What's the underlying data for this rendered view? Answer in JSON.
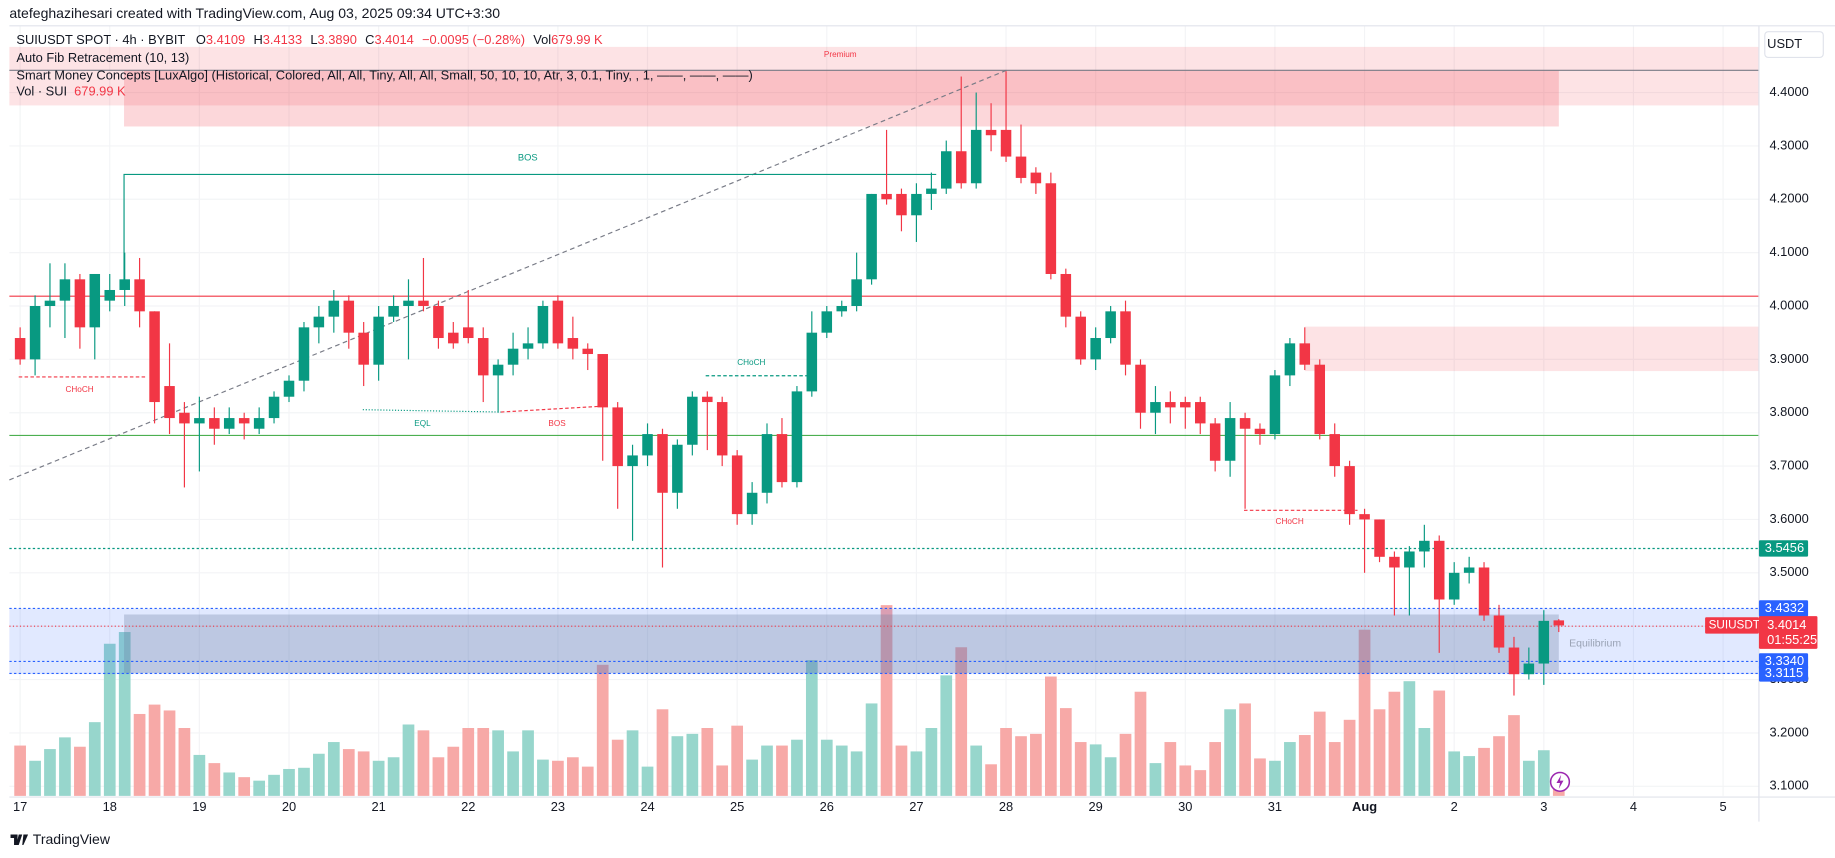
{
  "chart_data": {
    "type": "candlestick",
    "header": {
      "credit": "atefeghazihesari created with TradingView.com, Aug 03, 2025 09:34 UTC+3:30",
      "symbol": "SUIUSDT SPOT · 4h · BYBIT",
      "ohlc": [
        {
          "key": "O",
          "value": "3.4109"
        },
        {
          "key": "H",
          "value": "3.4133"
        },
        {
          "key": "L",
          "value": "3.3890"
        },
        {
          "key": "C",
          "value": "3.4014"
        }
      ],
      "change": "−0.0095 (−0.28%)",
      "vol_key": "Vol",
      "vol_value": "679.99 K",
      "indicators": [
        "Auto Fib Retracement (10, 13)",
        "Smart Money Concepts [LuxAlgo] (Historical, Colored, All, All, Tiny, All, All, Small, 50, 10, 10, Atr, 3, 0.1, Tiny, , 1, ——, ——, ——)"
      ],
      "vol_name": "Vol · SUI",
      "vol_text": "679.99 K"
    },
    "currency": "USDT",
    "brand": "TradingView",
    "annotations": {
      "premium": "Premium",
      "equilibrium": "Equilibrium",
      "bos": [
        "BOS",
        "BOS"
      ],
      "choch": [
        "CHoCH",
        "CHoCH",
        "CHoCH"
      ],
      "eql": "EQL"
    },
    "symbol_tag": {
      "name": "SUIUSDT",
      "countdown": "01:55:25"
    },
    "up_color": "#089981",
    "down_color": "#f23645",
    "volume_up_color": "#97d6cc",
    "volume_down_color": "#f7a9a7",
    "grid": true,
    "xlim": [
      16.88,
      36.4
    ],
    "xticks": [
      17,
      18,
      19,
      20,
      21,
      22,
      23,
      24,
      25,
      26,
      27,
      28,
      29,
      30,
      31,
      {
        "value": 32,
        "label": "Aug"
      },
      {
        "value": 33,
        "label": "2"
      },
      {
        "value": 34,
        "label": "3"
      },
      {
        "value": 35,
        "label": "4"
      },
      {
        "value": 36,
        "label": "5"
      }
    ],
    "ylim": [
      3.082,
      4.525
    ],
    "yticks": [
      {
        "value": 3.1,
        "label": "3.1000"
      },
      {
        "value": 3.2,
        "label": "3.2000"
      },
      {
        "value": 3.3,
        "label": "3.3000"
      },
      {
        "value": 3.4,
        "label": "3.4000"
      },
      {
        "value": 3.5,
        "label": "3.5000"
      },
      {
        "value": 3.6,
        "label": "3.6000"
      },
      {
        "value": 3.7,
        "label": "3.7000"
      },
      {
        "value": 3.8,
        "label": "3.8000"
      },
      {
        "value": 3.9,
        "label": "3.9000"
      },
      {
        "value": 4.0,
        "label": "4.0000"
      },
      {
        "value": 4.1,
        "label": "4.1000"
      },
      {
        "value": 4.2,
        "label": "4.2000"
      },
      {
        "value": 4.3,
        "label": "4.3000"
      },
      {
        "value": 4.4,
        "label": "4.4000"
      }
    ],
    "vol_ylim": [
      0,
      32900
    ],
    "price_lines": [
      {
        "value": 3.5456,
        "label": "3.5456",
        "color": "#089981"
      },
      {
        "value": 3.4332,
        "label": "3.4332",
        "color": "#2962ff"
      },
      {
        "value": 3.334,
        "label": "3.3340",
        "color": "#2962ff"
      },
      {
        "value": 3.3115,
        "label": "3.3115",
        "color": "#2962ff"
      }
    ],
    "x": [
      17,
      17.167,
      17.333,
      17.5,
      17.667,
      17.833,
      18,
      18.167,
      18.333,
      18.5,
      18.667,
      18.833,
      19,
      19.167,
      19.333,
      19.5,
      19.667,
      19.833,
      20,
      20.167,
      20.333,
      20.5,
      20.667,
      20.833,
      21,
      21.167,
      21.333,
      21.5,
      21.667,
      21.833,
      22,
      22.167,
      22.333,
      22.5,
      22.667,
      22.833,
      23,
      23.167,
      23.333,
      23.5,
      23.667,
      23.833,
      24,
      24.167,
      24.333,
      24.5,
      24.667,
      24.833,
      25,
      25.167,
      25.333,
      25.5,
      25.667,
      25.833,
      26,
      26.167,
      26.333,
      26.5,
      26.667,
      26.833,
      27,
      27.167,
      27.333,
      27.5,
      27.667,
      27.833,
      28,
      28.167,
      28.333,
      28.5,
      28.667,
      28.833,
      29,
      29.167,
      29.333,
      29.5,
      29.667,
      29.833,
      30,
      30.167,
      30.333,
      30.5,
      30.667,
      30.833,
      31,
      31.167,
      31.333,
      31.5,
      31.667,
      31.833,
      32,
      32.167,
      32.333,
      32.5,
      32.667,
      32.833,
      33,
      33.167,
      33.333,
      33.5,
      33.667,
      33.833,
      34,
      34.167
    ],
    "open": [
      3.94,
      3.9,
      4.0,
      4.01,
      4.05,
      3.96,
      4.01,
      4.03,
      4.05,
      3.99,
      3.85,
      3.8,
      3.78,
      3.79,
      3.77,
      3.79,
      3.77,
      3.79,
      3.83,
      3.86,
      3.96,
      3.98,
      4.01,
      3.95,
      3.89,
      3.98,
      4.0,
      4.01,
      4.0,
      3.95,
      3.96,
      3.94,
      3.87,
      3.89,
      3.92,
      3.93,
      4.01,
      3.94,
      3.92,
      3.91,
      3.81,
      3.7,
      3.72,
      3.76,
      3.65,
      3.74,
      3.83,
      3.82,
      3.72,
      3.61,
      3.65,
      3.76,
      3.67,
      3.84,
      3.95,
      3.99,
      4.0,
      4.05,
      4.21,
      4.21,
      4.17,
      4.21,
      4.22,
      4.29,
      4.23,
      4.33,
      4.33,
      4.28,
      4.25,
      4.23,
      4.06,
      3.98,
      3.9,
      3.94,
      3.99,
      3.89,
      3.8,
      3.82,
      3.82,
      3.82,
      3.78,
      3.71,
      3.79,
      3.77,
      3.76,
      3.87,
      3.93,
      3.89,
      3.76,
      3.7,
      3.61,
      3.6,
      3.53,
      3.51,
      3.54,
      3.56,
      3.45,
      3.5,
      3.51,
      3.42,
      3.36,
      3.31,
      3.33,
      3.4109
    ],
    "high": [
      3.96,
      4.02,
      4.08,
      4.08,
      4.06,
      4.06,
      4.06,
      4.1,
      4.09,
      3.99,
      3.93,
      3.82,
      3.83,
      3.81,
      3.81,
      3.8,
      3.81,
      3.84,
      3.87,
      3.97,
      4.0,
      4.03,
      4.02,
      3.97,
      4.0,
      4.02,
      4.05,
      4.09,
      4.01,
      3.97,
      4.03,
      3.96,
      3.9,
      3.95,
      3.96,
      4.01,
      4.02,
      3.98,
      3.93,
      3.91,
      3.82,
      3.74,
      3.78,
      3.77,
      3.75,
      3.84,
      3.84,
      3.83,
      3.73,
      3.67,
      3.78,
      3.79,
      3.85,
      3.99,
      4.0,
      4.01,
      4.1,
      4.21,
      4.33,
      4.22,
      4.23,
      4.25,
      4.31,
      4.43,
      4.4,
      4.38,
      4.44,
      4.34,
      4.26,
      4.25,
      4.07,
      3.99,
      3.96,
      4.0,
      4.01,
      3.9,
      3.85,
      3.84,
      3.83,
      3.83,
      3.79,
      3.82,
      3.8,
      3.78,
      3.88,
      3.94,
      3.96,
      3.9,
      3.78,
      3.71,
      3.62,
      3.6,
      3.54,
      3.55,
      3.59,
      3.57,
      3.52,
      3.53,
      3.52,
      3.44,
      3.38,
      3.36,
      3.43,
      3.4133
    ],
    "low": [
      3.89,
      3.87,
      3.96,
      3.94,
      3.92,
      3.9,
      3.99,
      4.0,
      3.96,
      3.78,
      3.76,
      3.66,
      3.69,
      3.74,
      3.76,
      3.75,
      3.76,
      3.78,
      3.82,
      3.84,
      3.93,
      3.95,
      3.92,
      3.85,
      3.86,
      3.97,
      3.9,
      3.99,
      3.92,
      3.92,
      3.93,
      3.82,
      3.8,
      3.87,
      3.9,
      3.92,
      3.92,
      3.9,
      3.88,
      3.71,
      3.62,
      3.56,
      3.7,
      3.51,
      3.62,
      3.72,
      3.73,
      3.7,
      3.59,
      3.59,
      3.63,
      3.66,
      3.66,
      3.83,
      3.94,
      3.98,
      3.99,
      4.04,
      4.19,
      4.14,
      4.12,
      4.18,
      4.21,
      4.22,
      4.22,
      4.29,
      4.27,
      4.23,
      4.21,
      4.05,
      3.96,
      3.89,
      3.88,
      3.93,
      3.87,
      3.77,
      3.76,
      3.78,
      3.77,
      3.76,
      3.69,
      3.68,
      3.62,
      3.74,
      3.75,
      3.85,
      3.88,
      3.75,
      3.68,
      3.59,
      3.5,
      3.52,
      3.42,
      3.42,
      3.51,
      3.35,
      3.44,
      3.48,
      3.41,
      3.35,
      3.27,
      3.3,
      3.29,
      3.389
    ],
    "close": [
      3.9,
      4.0,
      4.01,
      4.05,
      3.96,
      4.06,
      4.03,
      4.05,
      3.99,
      3.82,
      3.79,
      3.78,
      3.79,
      3.77,
      3.79,
      3.78,
      3.79,
      3.83,
      3.86,
      3.96,
      3.98,
      4.01,
      3.95,
      3.89,
      3.98,
      4.0,
      4.01,
      4.0,
      3.94,
      3.93,
      3.94,
      3.87,
      3.89,
      3.92,
      3.93,
      4.0,
      3.93,
      3.92,
      3.91,
      3.81,
      3.7,
      3.72,
      3.76,
      3.65,
      3.74,
      3.83,
      3.82,
      3.72,
      3.61,
      3.65,
      3.76,
      3.67,
      3.84,
      3.95,
      3.99,
      4.0,
      4.05,
      4.21,
      4.2,
      4.17,
      4.21,
      4.22,
      4.29,
      4.23,
      4.33,
      4.32,
      4.28,
      4.24,
      4.23,
      4.06,
      3.98,
      3.9,
      3.94,
      3.99,
      3.89,
      3.8,
      3.82,
      3.81,
      3.81,
      3.78,
      3.71,
      3.79,
      3.77,
      3.76,
      3.87,
      3.93,
      3.89,
      3.76,
      3.7,
      3.61,
      3.6,
      3.53,
      3.51,
      3.54,
      3.56,
      3.45,
      3.5,
      3.51,
      3.42,
      3.36,
      3.31,
      3.33,
      3.41,
      3.4014
    ],
    "volume": [
      2150,
      1500,
      2000,
      2500,
      2100,
      3150,
      6500,
      7000,
      3500,
      3900,
      3650,
      2900,
      1750,
      1400,
      1000,
      800,
      650,
      900,
      1150,
      1200,
      1800,
      2300,
      2000,
      1900,
      1500,
      1650,
      3050,
      2800,
      1650,
      2100,
      2900,
      2900,
      2800,
      1900,
      2800,
      1550,
      1500,
      1650,
      1250,
      5600,
      2400,
      2800,
      1250,
      3700,
      2550,
      2650,
      2900,
      1300,
      3000,
      1550,
      2150,
      2150,
      2400,
      5800,
      2400,
      2150,
      1900,
      3950,
      8150,
      2150,
      1900,
      2900,
      5150,
      6350,
      2150,
      1350,
      2900,
      2550,
      2650,
      5100,
      3750,
      2300,
      2200,
      1650,
      2650,
      4450,
      1400,
      2300,
      1300,
      1100,
      2300,
      3700,
      3950,
      1600,
      1500,
      2300,
      2600,
      3600,
      2300,
      3250,
      7100,
      3700,
      4450,
      4900,
      2900,
      4500,
      1900,
      1700,
      2050,
      2550,
      3450,
      1500,
      1950,
      679.99
    ]
  }
}
